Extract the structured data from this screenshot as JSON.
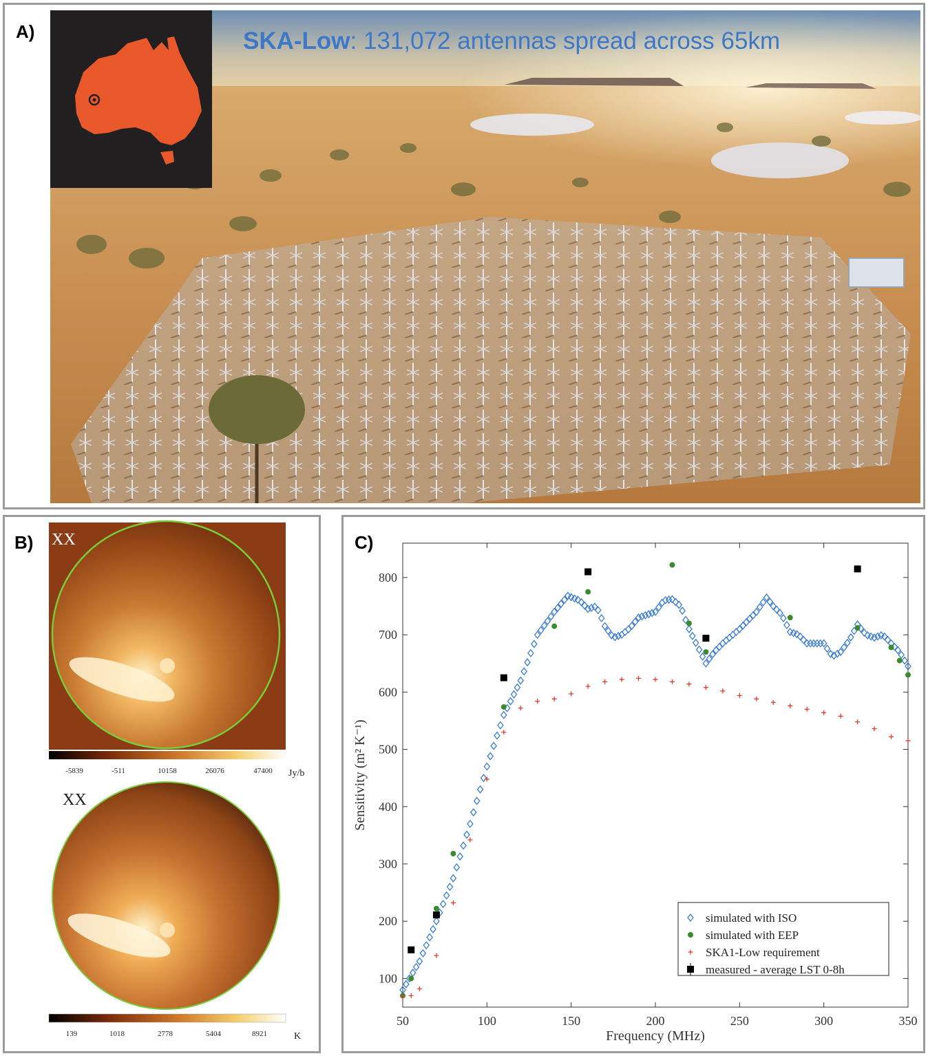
{
  "panel_a": {
    "label": "A)",
    "title_highlight": "SKA-Low",
    "title_rest": ": 131,072 antennas spread across 65km",
    "colors": {
      "title": "#3d78c6",
      "australia": "#e8582a",
      "inset_bg": "#221f20"
    }
  },
  "panel_b": {
    "label": "B)",
    "maps": [
      {
        "pol_label": "XX",
        "colorbar_ticks": [
          "-5839",
          "-511",
          "10158",
          "26076",
          "47400"
        ],
        "unit": "Jy/b"
      },
      {
        "pol_label": "XX",
        "colorbar_ticks": [
          "139",
          "1018",
          "2778",
          "5404",
          "8921"
        ],
        "unit": "K"
      }
    ]
  },
  "panel_c": {
    "label": "C)"
  },
  "chart_data": {
    "type": "scatter",
    "xlabel": "Frequency (MHz)",
    "ylabel": "Sensitivity (m² K⁻¹)",
    "xlim": [
      50,
      350
    ],
    "ylim": [
      50,
      860
    ],
    "xticks": [
      50,
      100,
      150,
      200,
      250,
      300,
      350
    ],
    "yticks": [
      100,
      200,
      300,
      400,
      500,
      600,
      700,
      800
    ],
    "legend_position": "bottom-right",
    "series": [
      {
        "name": "simulated with ISO",
        "marker": "diamond-open",
        "color": "#3a7bd5",
        "knots": [
          [
            50,
            80
          ],
          [
            60,
            130
          ],
          [
            70,
            200
          ],
          [
            80,
            275
          ],
          [
            90,
            370
          ],
          [
            100,
            470
          ],
          [
            110,
            560
          ],
          [
            120,
            620
          ],
          [
            130,
            700
          ],
          [
            140,
            740
          ],
          [
            148,
            768
          ],
          [
            155,
            760
          ],
          [
            160,
            745
          ],
          [
            165,
            750
          ],
          [
            170,
            715
          ],
          [
            175,
            695
          ],
          [
            180,
            700
          ],
          [
            185,
            712
          ],
          [
            190,
            730
          ],
          [
            200,
            740
          ],
          [
            205,
            760
          ],
          [
            210,
            762
          ],
          [
            215,
            750
          ],
          [
            220,
            710
          ],
          [
            225,
            680
          ],
          [
            230,
            650
          ],
          [
            235,
            670
          ],
          [
            240,
            685
          ],
          [
            250,
            710
          ],
          [
            260,
            740
          ],
          [
            266,
            765
          ],
          [
            270,
            750
          ],
          [
            275,
            735
          ],
          [
            280,
            705
          ],
          [
            285,
            700
          ],
          [
            290,
            685
          ],
          [
            300,
            685
          ],
          [
            305,
            662
          ],
          [
            310,
            670
          ],
          [
            315,
            690
          ],
          [
            320,
            718
          ],
          [
            325,
            700
          ],
          [
            330,
            695
          ],
          [
            335,
            700
          ],
          [
            340,
            685
          ],
          [
            345,
            670
          ],
          [
            350,
            645
          ]
        ],
        "step": 2
      },
      {
        "name": "simulated with EEP",
        "marker": "dot",
        "color": "#3a8a2e",
        "points": [
          [
            50,
            70
          ],
          [
            55,
            100
          ],
          [
            70,
            222
          ],
          [
            80,
            318
          ],
          [
            110,
            574
          ],
          [
            140,
            715
          ],
          [
            160,
            775
          ],
          [
            210,
            822
          ],
          [
            220,
            720
          ],
          [
            230,
            670
          ],
          [
            280,
            730
          ],
          [
            320,
            712
          ],
          [
            340,
            678
          ],
          [
            345,
            655
          ],
          [
            350,
            630
          ]
        ]
      },
      {
        "name": "SKA1-Low requirement",
        "marker": "plus",
        "color": "#e33b2e",
        "points": [
          [
            50,
            68
          ],
          [
            55,
            70
          ],
          [
            60,
            82
          ],
          [
            70,
            140
          ],
          [
            80,
            232
          ],
          [
            90,
            342
          ],
          [
            100,
            448
          ],
          [
            110,
            530
          ],
          [
            120,
            572
          ],
          [
            130,
            584
          ],
          [
            140,
            588
          ],
          [
            150,
            597
          ],
          [
            160,
            610
          ],
          [
            170,
            618
          ],
          [
            180,
            622
          ],
          [
            190,
            624
          ],
          [
            200,
            622
          ],
          [
            210,
            618
          ],
          [
            220,
            614
          ],
          [
            230,
            608
          ],
          [
            240,
            602
          ],
          [
            250,
            594
          ],
          [
            260,
            588
          ],
          [
            270,
            582
          ],
          [
            280,
            576
          ],
          [
            290,
            570
          ],
          [
            300,
            564
          ],
          [
            310,
            558
          ],
          [
            320,
            548
          ],
          [
            330,
            536
          ],
          [
            340,
            522
          ],
          [
            350,
            515
          ]
        ]
      },
      {
        "name": "measured - average LST 0-8h",
        "marker": "square-errorbar",
        "color": "#000000",
        "points": [
          [
            55,
            150
          ],
          [
            70,
            211
          ],
          [
            110,
            625
          ],
          [
            160,
            810
          ],
          [
            230,
            694
          ],
          [
            320,
            815
          ]
        ]
      }
    ]
  }
}
